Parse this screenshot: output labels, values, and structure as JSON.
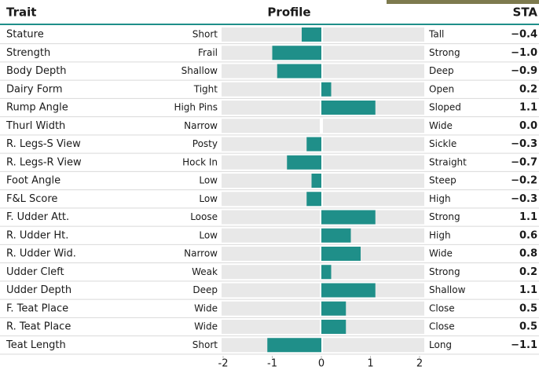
{
  "chart_data": {
    "type": "bar",
    "headers": {
      "trait": "Trait",
      "profile": "Profile",
      "sta": "STA"
    },
    "categories": [
      "Stature",
      "Strength",
      "Body Depth",
      "Dairy Form",
      "Rump Angle",
      "Thurl Width",
      "R. Legs-S View",
      "R. Legs-R View",
      "Foot Angle",
      "F&L Score",
      "F. Udder Att.",
      "R. Udder Ht.",
      "R. Udder Wid.",
      "Udder Cleft",
      "Udder Depth",
      "F. Teat Place",
      "R. Teat Place",
      "Teat Length"
    ],
    "low_labels": [
      "Short",
      "Frail",
      "Shallow",
      "Tight",
      "High Pins",
      "Narrow",
      "Posty",
      "Hock In",
      "Low",
      "Low",
      "Loose",
      "Low",
      "Narrow",
      "Weak",
      "Deep",
      "Wide",
      "Wide",
      "Short"
    ],
    "high_labels": [
      "Tall",
      "Strong",
      "Deep",
      "Open",
      "Sloped",
      "Wide",
      "Sickle",
      "Straight",
      "Steep",
      "High",
      "Strong",
      "High",
      "Wide",
      "Strong",
      "Shallow",
      "Close",
      "Close",
      "Long"
    ],
    "values": [
      -0.4,
      -1.0,
      -0.9,
      0.2,
      1.1,
      0.0,
      -0.3,
      -0.7,
      -0.2,
      -0.3,
      1.1,
      0.6,
      0.8,
      0.2,
      1.1,
      0.5,
      0.5,
      -1.1
    ],
    "value_labels": [
      "−0.4",
      "−1.0",
      "−0.9",
      "0.2",
      "1.1",
      "0.0",
      "−0.3",
      "−0.7",
      "−0.2",
      "−0.3",
      "1.1",
      "0.6",
      "0.8",
      "0.2",
      "1.1",
      "0.5",
      "0.5",
      "−1.1"
    ],
    "color": "#1f8f89",
    "xlim": [
      -2,
      2
    ],
    "xticks": [
      -2,
      -1,
      0,
      1,
      2
    ]
  }
}
